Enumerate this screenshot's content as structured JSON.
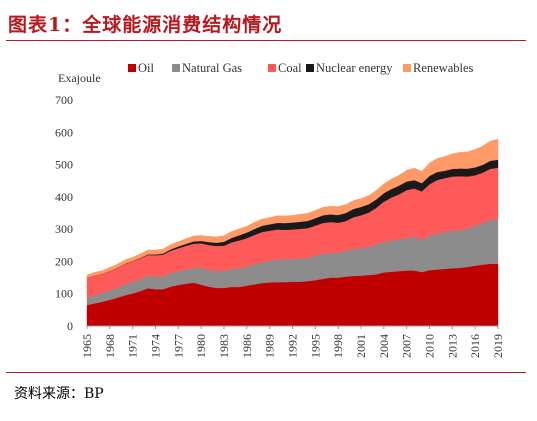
{
  "header": {
    "title": "图表1：全球能源消费结构情况"
  },
  "footer": {
    "source": "资料来源：BP"
  },
  "chart_data": {
    "type": "area",
    "stacked": true,
    "title": "",
    "ylabel": "Exajoule",
    "ylim": [
      0,
      700
    ],
    "yticks": [
      0,
      100,
      200,
      300,
      400,
      500,
      600,
      700
    ],
    "x": [
      1965,
      1966,
      1967,
      1968,
      1969,
      1970,
      1971,
      1972,
      1973,
      1974,
      1975,
      1976,
      1977,
      1978,
      1979,
      1980,
      1981,
      1982,
      1983,
      1984,
      1985,
      1986,
      1987,
      1988,
      1989,
      1990,
      1991,
      1992,
      1993,
      1994,
      1995,
      1996,
      1997,
      1998,
      1999,
      2000,
      2001,
      2002,
      2003,
      2004,
      2005,
      2006,
      2007,
      2008,
      2009,
      2010,
      2011,
      2012,
      2013,
      2014,
      2015,
      2016,
      2017,
      2018,
      2019
    ],
    "xticks": [
      "1965",
      "1968",
      "1971",
      "1974",
      "1977",
      "1980",
      "1983",
      "1986",
      "1989",
      "1992",
      "1995",
      "1998",
      "2001",
      "2004",
      "2007",
      "2010",
      "2013",
      "2016",
      "2019"
    ],
    "legend_position": "top",
    "grid": false,
    "series": [
      {
        "name": "Oil",
        "color": "#c00000",
        "values": [
          65,
          70,
          75,
          81,
          88,
          95,
          101,
          108,
          117,
          114,
          114,
          122,
          127,
          131,
          134,
          128,
          122,
          118,
          118,
          121,
          121,
          125,
          129,
          133,
          135,
          136,
          136,
          137,
          137,
          139,
          142,
          146,
          150,
          150,
          153,
          155,
          156,
          158,
          160,
          166,
          168,
          170,
          172,
          172,
          167,
          173,
          175,
          177,
          179,
          180,
          183,
          187,
          190,
          193,
          193
        ]
      },
      {
        "name": "Natural Gas",
        "color": "#8c8c8c",
        "values": [
          24,
          25,
          27,
          29,
          31,
          34,
          36,
          37,
          39,
          40,
          40,
          42,
          43,
          44,
          46,
          52,
          52,
          52,
          52,
          56,
          58,
          59,
          62,
          65,
          67,
          70,
          71,
          71,
          72,
          72,
          75,
          78,
          77,
          78,
          80,
          84,
          85,
          88,
          92,
          95,
          97,
          98,
          101,
          104,
          100,
          108,
          111,
          114,
          116,
          117,
          119,
          123,
          128,
          136,
          139
        ]
      },
      {
        "name": "Coal",
        "color": "#ff5a5a",
        "values": [
          60,
          61,
          59,
          60,
          61,
          63,
          63,
          64,
          64,
          65,
          67,
          69,
          71,
          73,
          75,
          76,
          77,
          78,
          79,
          82,
          86,
          88,
          91,
          93,
          93,
          93,
          91,
          91,
          92,
          92,
          94,
          95,
          95,
          92,
          92,
          98,
          102,
          105,
          114,
          124,
          133,
          140,
          148,
          150,
          150,
          158,
          166,
          167,
          168,
          167,
          161,
          157,
          157,
          158,
          158
        ]
      },
      {
        "name": "Nuclear energy",
        "color": "#1a1a1a",
        "values": [
          0.2,
          0.3,
          0.4,
          0.5,
          0.6,
          0.8,
          1.1,
          1.5,
          2,
          2.5,
          3.5,
          4.5,
          5.5,
          6.5,
          7,
          7.5,
          9,
          10,
          12,
          14,
          16,
          17.5,
          18.5,
          19.5,
          20,
          20.5,
          21,
          21.5,
          22,
          22.5,
          23,
          24,
          24,
          24,
          25,
          25.5,
          26,
          26,
          26,
          26.5,
          26.5,
          27,
          26.5,
          26,
          25.5,
          26,
          25,
          23,
          23.5,
          24,
          24.5,
          24.5,
          24.5,
          25,
          25
        ]
      },
      {
        "name": "Renewables",
        "color": "#ff9966",
        "values": [
          9,
          10,
          10,
          11,
          11,
          12,
          12,
          13,
          13,
          14,
          14,
          15,
          15,
          16,
          17,
          17,
          18,
          18,
          19,
          20,
          20,
          20,
          21,
          21,
          21,
          22,
          22,
          22,
          23,
          24,
          24,
          25,
          25,
          26,
          26,
          26,
          26,
          27,
          28,
          29,
          31,
          32,
          35,
          37,
          37,
          40,
          42,
          44,
          47,
          50,
          52,
          55,
          58,
          61,
          64
        ]
      }
    ]
  }
}
